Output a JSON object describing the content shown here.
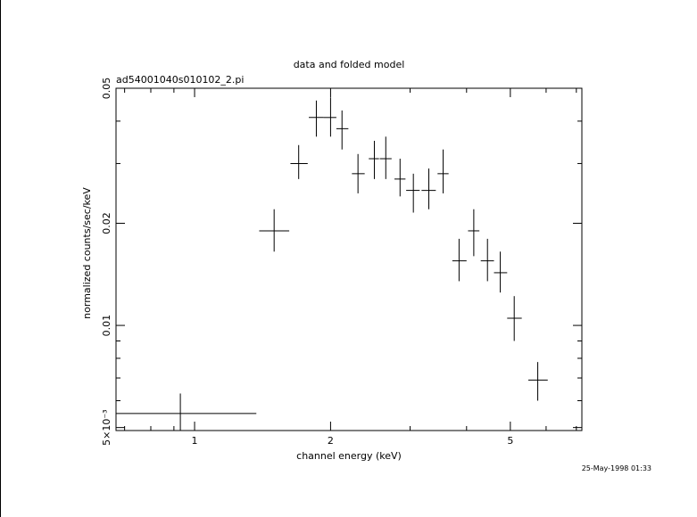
{
  "chart_data": {
    "type": "scatter",
    "title": "data and folded model",
    "subtitle": "ad54001040s010102_2.pi",
    "xlabel": "channel energy (keV)",
    "ylabel": "normalized counts/sec/keV",
    "footer": "25-May-1998 01:33",
    "x_scale": "log",
    "y_scale": "log",
    "xlim": [
      0.67,
      7.2
    ],
    "ylim": [
      0.0049,
      0.05
    ],
    "x_ticks": [
      {
        "value": 1,
        "label": "1"
      },
      {
        "value": 2,
        "label": "2"
      },
      {
        "value": 5,
        "label": "5"
      }
    ],
    "y_ticks": [
      {
        "value": 0.005,
        "label": "5×10⁻³"
      },
      {
        "value": 0.01,
        "label": "0.01"
      },
      {
        "value": 0.02,
        "label": "0.02"
      },
      {
        "value": 0.05,
        "label": "0.05"
      }
    ],
    "grid": false,
    "series": [
      {
        "points": [
          {
            "x": 0.93,
            "xlo": 0.67,
            "xhi": 1.37,
            "y": 0.0055,
            "ylo": 0.0048,
            "yhi": 0.0063
          },
          {
            "x": 1.5,
            "xlo": 1.39,
            "xhi": 1.62,
            "y": 0.019,
            "ylo": 0.0165,
            "yhi": 0.022
          },
          {
            "x": 1.7,
            "xlo": 1.63,
            "xhi": 1.78,
            "y": 0.03,
            "ylo": 0.027,
            "yhi": 0.034
          },
          {
            "x": 1.86,
            "xlo": 1.79,
            "xhi": 1.93,
            "y": 0.041,
            "ylo": 0.036,
            "yhi": 0.046
          },
          {
            "x": 2.0,
            "xlo": 1.93,
            "xhi": 2.06,
            "y": 0.041,
            "ylo": 0.036,
            "yhi": 0.047
          },
          {
            "x": 2.12,
            "xlo": 2.06,
            "xhi": 2.19,
            "y": 0.038,
            "ylo": 0.033,
            "yhi": 0.043
          },
          {
            "x": 2.3,
            "xlo": 2.23,
            "xhi": 2.38,
            "y": 0.028,
            "ylo": 0.0245,
            "yhi": 0.032
          },
          {
            "x": 2.5,
            "xlo": 2.43,
            "xhi": 2.56,
            "y": 0.031,
            "ylo": 0.027,
            "yhi": 0.035
          },
          {
            "x": 2.65,
            "xlo": 2.57,
            "xhi": 2.73,
            "y": 0.031,
            "ylo": 0.027,
            "yhi": 0.036
          },
          {
            "x": 2.85,
            "xlo": 2.77,
            "xhi": 2.93,
            "y": 0.027,
            "ylo": 0.024,
            "yhi": 0.031
          },
          {
            "x": 3.05,
            "xlo": 2.94,
            "xhi": 3.15,
            "y": 0.025,
            "ylo": 0.0215,
            "yhi": 0.028
          },
          {
            "x": 3.3,
            "xlo": 3.18,
            "xhi": 3.42,
            "y": 0.025,
            "ylo": 0.022,
            "yhi": 0.029
          },
          {
            "x": 3.55,
            "xlo": 3.45,
            "xhi": 3.65,
            "y": 0.028,
            "ylo": 0.0245,
            "yhi": 0.033
          },
          {
            "x": 3.85,
            "xlo": 3.72,
            "xhi": 4.0,
            "y": 0.0155,
            "ylo": 0.0135,
            "yhi": 0.018
          },
          {
            "x": 4.15,
            "xlo": 4.03,
            "xhi": 4.27,
            "y": 0.019,
            "ylo": 0.016,
            "yhi": 0.022
          },
          {
            "x": 4.45,
            "xlo": 4.3,
            "xhi": 4.6,
            "y": 0.0155,
            "ylo": 0.0135,
            "yhi": 0.018
          },
          {
            "x": 4.75,
            "xlo": 4.6,
            "xhi": 4.92,
            "y": 0.0143,
            "ylo": 0.0125,
            "yhi": 0.0165
          },
          {
            "x": 5.1,
            "xlo": 4.92,
            "xhi": 5.3,
            "y": 0.0105,
            "ylo": 0.009,
            "yhi": 0.0122
          },
          {
            "x": 5.75,
            "xlo": 5.48,
            "xhi": 6.05,
            "y": 0.0069,
            "ylo": 0.006,
            "yhi": 0.0078
          }
        ]
      }
    ]
  }
}
